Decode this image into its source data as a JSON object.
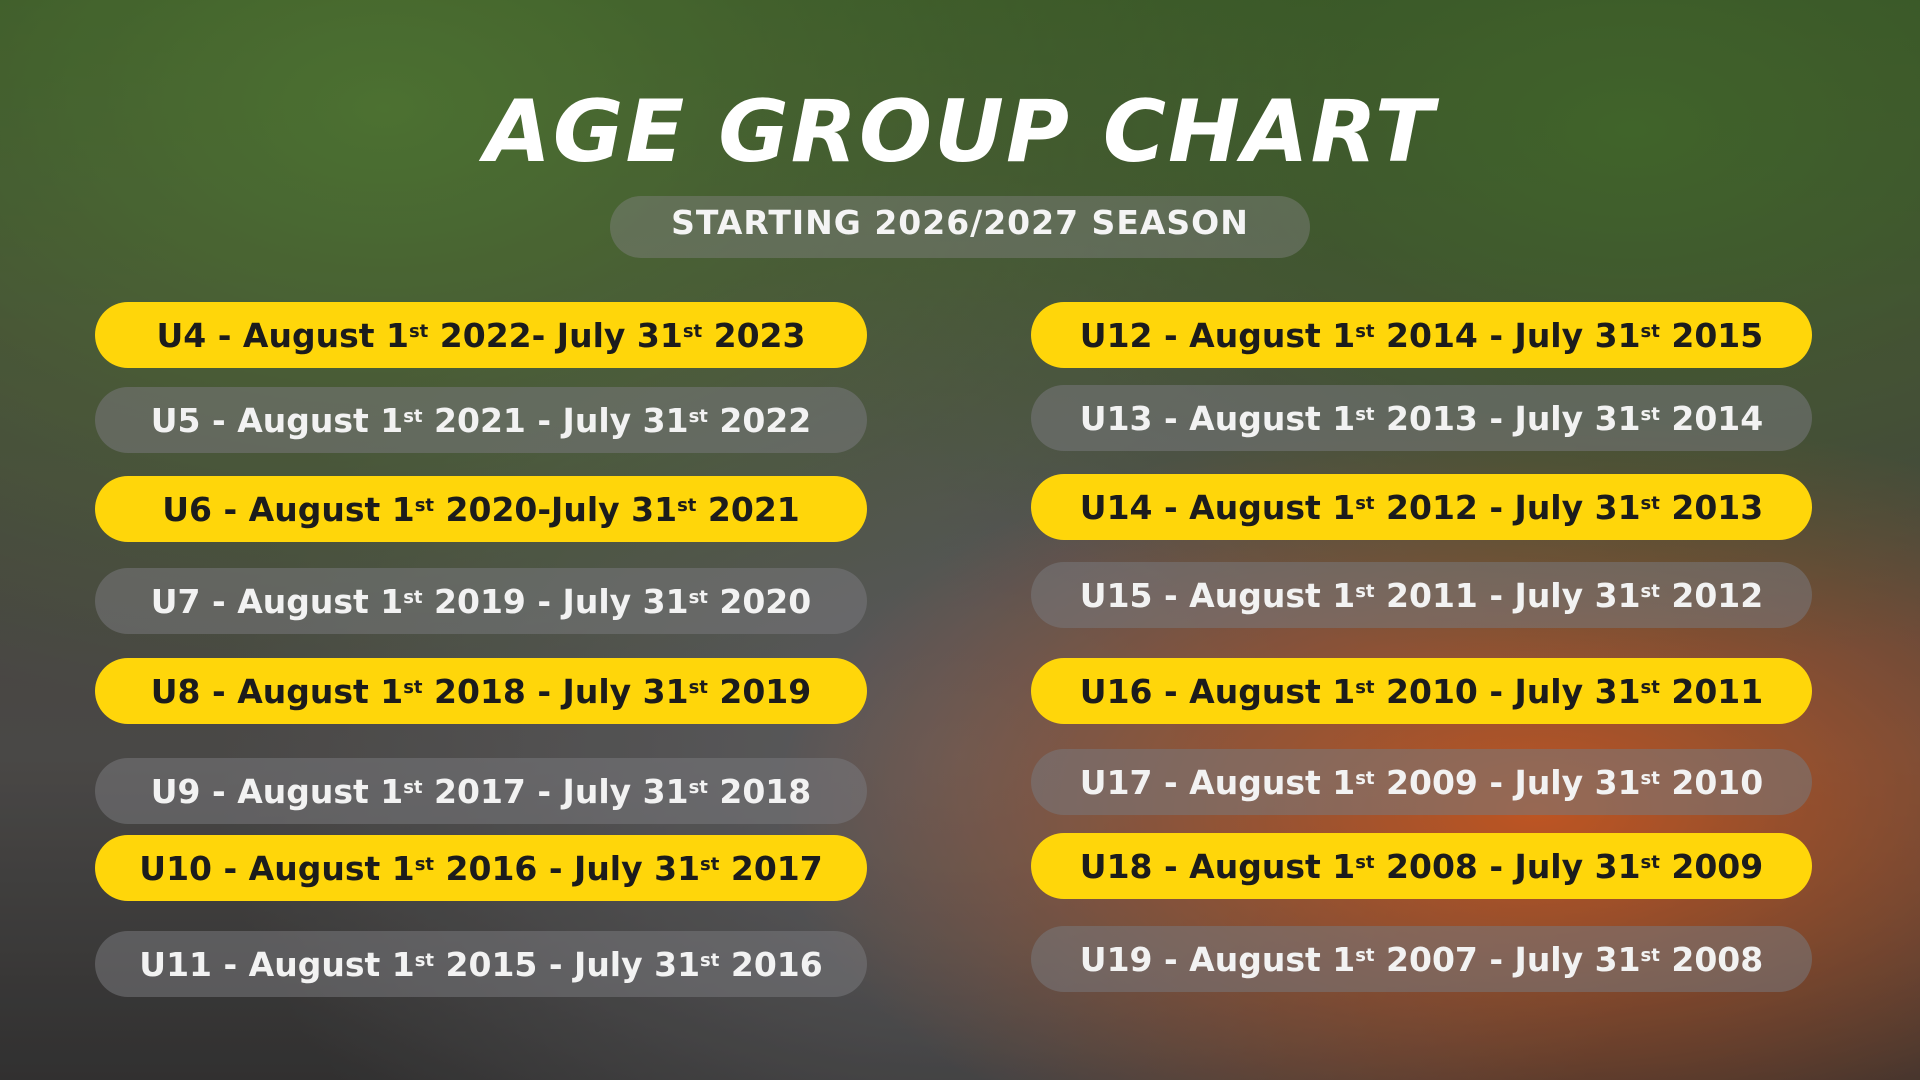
{
  "header": {
    "title": "AGE GROUP CHART",
    "subtitle": "STARTING 2026/2027 SEASON"
  },
  "columns": [
    {
      "rows": [
        {
          "parts": [
            "U4 - August 1",
            "st",
            " 2022- July 31",
            "st",
            " 2023"
          ]
        },
        {
          "parts": [
            "U5 - August 1",
            "st",
            " 2021 - July 31",
            "st",
            " 2022"
          ]
        },
        {
          "parts": [
            "U6 - August 1",
            "st",
            " 2020-July 31",
            "st",
            " 2021"
          ]
        },
        {
          "parts": [
            "U7 - August 1",
            "st",
            " 2019 - July 31",
            "st",
            " 2020"
          ]
        },
        {
          "parts": [
            "U8 - August 1",
            "st",
            " 2018 - July 31",
            "st",
            " 2019"
          ]
        },
        {
          "parts": [
            "U9 - August 1",
            "st",
            " 2017 - July 31",
            "st",
            " 2018"
          ]
        },
        {
          "parts": [
            "U10 - August 1",
            "st",
            " 2016 - July 31",
            "st",
            " 2017"
          ]
        },
        {
          "parts": [
            "U11 - August 1",
            "st",
            " 2015 - July 31",
            "st",
            " 2016"
          ]
        }
      ]
    },
    {
      "rows": [
        {
          "parts": [
            "U12 - August 1",
            "st",
            " 2014 - July 31",
            "st",
            " 2015"
          ]
        },
        {
          "parts": [
            "U13 - August 1",
            "st",
            " 2013 - July 31",
            "st",
            " 2014"
          ]
        },
        {
          "parts": [
            "U14 - August 1",
            "st",
            " 2012 - July 31",
            "st",
            " 2013"
          ]
        },
        {
          "parts": [
            "U15 - August 1",
            "st",
            " 2011 - July 31",
            "st",
            " 2012"
          ]
        },
        {
          "parts": [
            "U16 - August 1",
            "st",
            " 2010 - July 31",
            "st",
            " 2011"
          ]
        },
        {
          "parts": [
            "U17 - August 1",
            "st",
            " 2009 - July 31",
            "st",
            " 2010"
          ]
        },
        {
          "parts": [
            "U18 - August 1",
            "st",
            " 2008 - July 31",
            "st",
            " 2009"
          ]
        },
        {
          "parts": [
            "U19 - August 1",
            "st",
            " 2007 - July 31",
            "st",
            " 2008"
          ]
        }
      ]
    }
  ]
}
